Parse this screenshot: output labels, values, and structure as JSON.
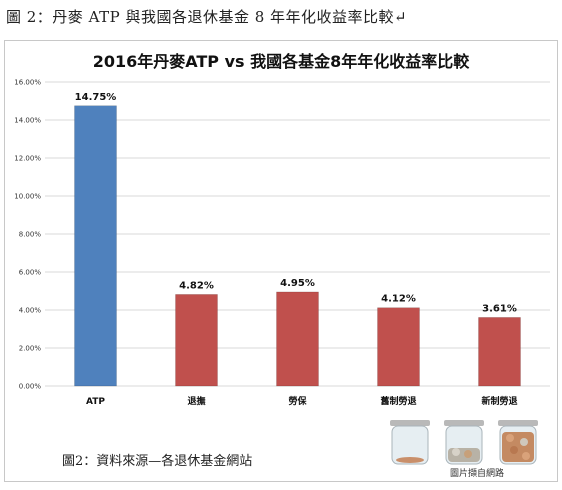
{
  "figure_caption": "圖 2：丹麥 ATP 與我國各退休基金 8 年年化收益率比較↵",
  "source_caption": "圖2：資料來源—各退休基金網站",
  "photo_credit": "圖片擷自網路",
  "colors": {
    "atp_bar": "#4f81bd",
    "other_bars": "#c0504d",
    "grid": "#d9d9d9"
  },
  "chart_data": {
    "type": "bar",
    "title": "2016年丹麥ATP vs 我國各基金8年年化收益率比較",
    "xlabel": "",
    "ylabel": "",
    "categories": [
      "ATP",
      "退撫",
      "勞保",
      "舊制勞退",
      "新制勞退"
    ],
    "values": [
      14.75,
      4.82,
      4.95,
      4.12,
      3.61
    ],
    "data_labels": [
      "14.75%",
      "4.82%",
      "4.95%",
      "4.12%",
      "3.61%"
    ],
    "ylim": [
      0,
      16
    ],
    "yticks": [
      "0.00%",
      "2.00%",
      "4.00%",
      "6.00%",
      "8.00%",
      "10.00%",
      "12.00%",
      "14.00%",
      "16.00%"
    ],
    "grid": true,
    "legend": "none"
  }
}
